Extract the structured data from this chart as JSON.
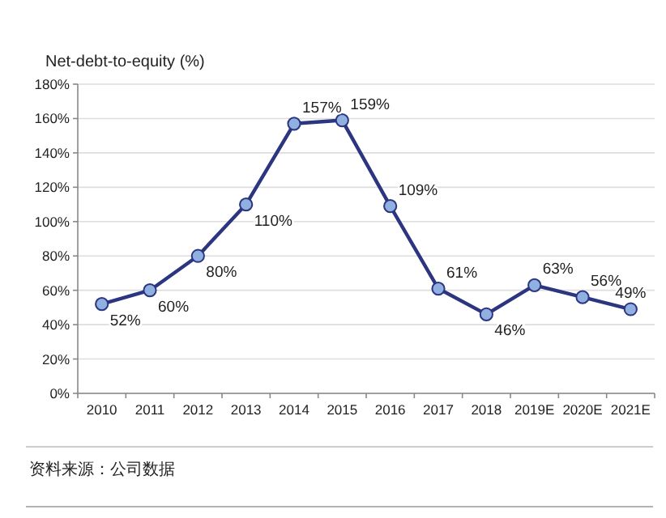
{
  "chart_data": {
    "type": "line",
    "ylabel": "Net-debt-to-equity (%)",
    "categories": [
      "2010",
      "2011",
      "2012",
      "2013",
      "2014",
      "2015",
      "2016",
      "2017",
      "2018",
      "2019E",
      "2020E",
      "2021E"
    ],
    "series": [
      {
        "color": "#2b3580",
        "values": [
          52,
          60,
          80,
          110,
          157,
          159,
          109,
          61,
          46,
          63,
          56,
          49
        ],
        "value_labels": [
          "52%",
          "60%",
          "80%",
          "110%",
          "157%",
          "159%",
          "109%",
          "61%",
          "46%",
          "63%",
          "56%",
          "49%"
        ]
      }
    ],
    "ylim": [
      0,
      180
    ],
    "yticks": [
      {
        "value": 0,
        "label": "0%"
      },
      {
        "value": 20,
        "label": "20%"
      },
      {
        "value": 40,
        "label": "40%"
      },
      {
        "value": 60,
        "label": "60%"
      },
      {
        "value": 80,
        "label": "80%"
      },
      {
        "value": 100,
        "label": "100%"
      },
      {
        "value": 120,
        "label": "120%"
      },
      {
        "value": 140,
        "label": "140%"
      },
      {
        "value": 160,
        "label": "160%"
      },
      {
        "value": 180,
        "label": "180%"
      }
    ],
    "grid": "y",
    "marker": "circle",
    "line_style": "solid",
    "annotations": [
      "资料来源：公司数据"
    ]
  }
}
